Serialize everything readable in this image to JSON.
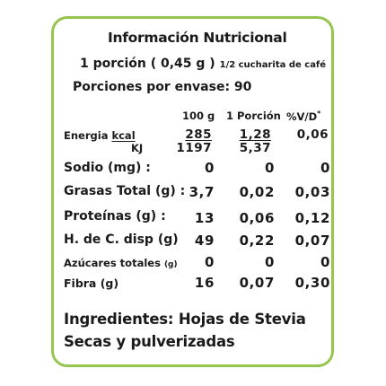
{
  "label": {
    "title": "Información Nutricional",
    "portion_main": "1 porción ( 0,45 g )",
    "portion_note": "1/2 cucharita de café",
    "servings": "Porciones por envase: 90",
    "columns": [
      "100 g",
      "1 Porción",
      "%V/D"
    ],
    "columns_mark": "*",
    "energy": {
      "label": "Energia",
      "unit_kcal": "kcal",
      "unit_kj": "KJ",
      "kcal": [
        "285",
        "1,28",
        "0,06"
      ],
      "kj": [
        "1197",
        "5,37"
      ]
    },
    "rows": [
      {
        "label": "Sodio (mg) :",
        "values": [
          "0",
          "0",
          "0"
        ]
      },
      {
        "label": "Grasas Total (g) :",
        "values": [
          "3,7",
          "0,02",
          "0,03"
        ]
      },
      {
        "label": "Proteínas (g) :",
        "values": [
          "13",
          "0,06",
          "0,12"
        ]
      },
      {
        "label": "H. de C. disp (g)",
        "values": [
          "49",
          "0,22",
          "0,07"
        ]
      },
      {
        "label": "Azúcares totales",
        "label_unit": "(g)",
        "values": [
          "0",
          "0",
          "0"
        ]
      },
      {
        "label": "Fibra (g)",
        "values": [
          "16",
          "0,07",
          "0,30"
        ]
      }
    ],
    "ingredients": "Ingredientes: Hojas de Stevia Secas y pulverizadas",
    "border_color": "#96c54f"
  }
}
